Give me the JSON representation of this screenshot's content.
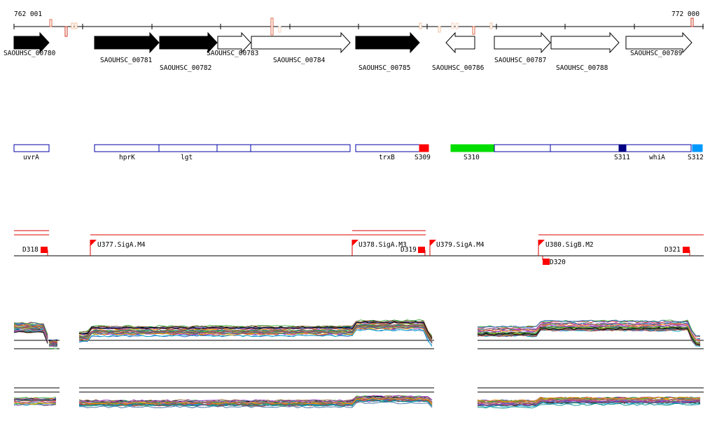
{
  "ruler": {
    "start_label": "762 001",
    "end_label": "772 000"
  },
  "genes": [
    {
      "id": "SAOUHSC_00780",
      "strand": "+",
      "filled": true
    },
    {
      "id": "SAOUHSC_00781",
      "strand": "+",
      "filled": true
    },
    {
      "id": "SAOUHSC_00782",
      "strand": "+",
      "filled": true
    },
    {
      "id": "SAOUHSC_00783",
      "strand": "+",
      "filled": false
    },
    {
      "id": "SAOUHSC_00784",
      "strand": "+",
      "filled": false
    },
    {
      "id": "SAOUHSC_00785",
      "strand": "+",
      "filled": true
    },
    {
      "id": "SAOUHSC_00786",
      "strand": "-",
      "filled": false
    },
    {
      "id": "SAOUHSC_00787",
      "strand": "+",
      "filled": false
    },
    {
      "id": "SAOUHSC_00788",
      "strand": "+",
      "filled": false
    },
    {
      "id": "SAOUHSC_00789",
      "strand": "+",
      "filled": false
    }
  ],
  "gene_names": [
    "uvrA",
    "hprK",
    "lgt",
    "trxB",
    "whiA"
  ],
  "segments": [
    {
      "label": "S309",
      "color": "#ff0000"
    },
    {
      "label": "S310",
      "color": "#00dd00"
    },
    {
      "label": "S311",
      "color": "#000080"
    },
    {
      "label": "S312",
      "color": "#0099ff"
    }
  ],
  "promoters": [
    "U377.SigA.M4",
    "U378.SigA.M3",
    "U379.SigA.M4",
    "U380.SigB.M2"
  ],
  "terminators": [
    "D318",
    "D319",
    "D320",
    "D321"
  ],
  "colors": {
    "segment_border": "#0000aa",
    "feature_red": "#ff0000",
    "regulation_line": "#dd0000",
    "tick": "#000000"
  }
}
